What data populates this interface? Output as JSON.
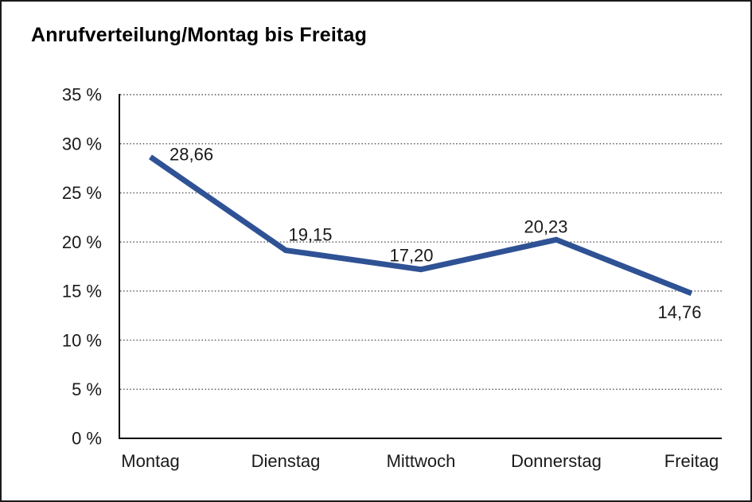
{
  "window": {
    "background_color": "#ffffff",
    "border_color": "#1a1a1a"
  },
  "chart_data": {
    "type": "line",
    "title": "Anrufverteilung/Montag bis Freitag",
    "categories": [
      "Montag",
      "Dienstag",
      "Mittwoch",
      "Donnerstag",
      "Freitag"
    ],
    "values": [
      28.66,
      19.15,
      17.2,
      20.23,
      14.76
    ],
    "point_labels": [
      "28,66",
      "19,15",
      "17,20",
      "20,23",
      "14,76"
    ],
    "xlabel": "",
    "ylabel": "",
    "ylim": [
      0,
      35
    ],
    "ytick_values": [
      0,
      5,
      10,
      15,
      20,
      25,
      30,
      35
    ],
    "ytick_labels": [
      "0 %",
      "5 %",
      "10 %",
      "15 %",
      "20 %",
      "25 %",
      "30 %",
      "35 %"
    ],
    "grid": "horizontal-dotted",
    "legend": "none",
    "line_color": "#2F5295",
    "axis_color": "#000000",
    "gridline_color": "#555555",
    "text_color": "#1a1a1a"
  }
}
